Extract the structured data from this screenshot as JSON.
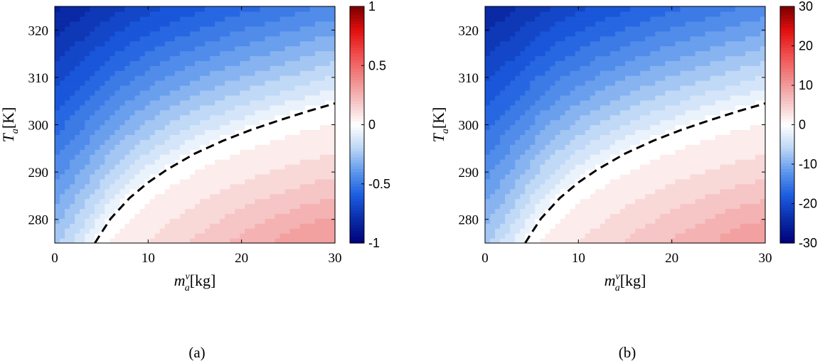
{
  "chart_data": [
    {
      "type": "heatmap",
      "caption": "(a)",
      "x": {
        "symbol": "m",
        "sup": "v",
        "sub": "a",
        "unit": "[kg]",
        "lim": [
          0,
          30
        ],
        "ticks": [
          0,
          10,
          20,
          30
        ],
        "tick_labels": [
          "0",
          "10",
          "20",
          "30"
        ]
      },
      "y": {
        "symbol": "T",
        "sub": "a",
        "unit": "[K]",
        "lim": [
          275,
          325
        ],
        "ticks": [
          280,
          290,
          300,
          310,
          320
        ],
        "tick_labels": [
          "280",
          "290",
          "300",
          "310",
          "320"
        ]
      },
      "colorbar": {
        "lim": [
          -1,
          1
        ],
        "ticks": [
          -1,
          -0.5,
          0,
          0.5,
          1
        ],
        "tick_labels": [
          "-1",
          "-0.5",
          "0",
          "0.5",
          "1"
        ]
      },
      "field_scale": 1,
      "min_value": -0.98,
      "max_value": 0.26,
      "zero_contour": {
        "style": "dashed",
        "color": "#000000",
        "x": [
          4.3,
          5,
          6,
          8,
          10,
          12,
          15,
          18,
          21,
          24,
          27,
          30
        ],
        "y": [
          275,
          277.2,
          280.2,
          284.5,
          287.8,
          290.5,
          293.9,
          296.6,
          298.9,
          300.9,
          302.8,
          304.5
        ]
      }
    },
    {
      "type": "heatmap",
      "caption": "(b)",
      "x": {
        "symbol": "m",
        "sup": "v",
        "sub": "a",
        "unit": "[kg]",
        "lim": [
          0,
          30
        ],
        "ticks": [
          0,
          10,
          20,
          30
        ],
        "tick_labels": [
          "0",
          "10",
          "20",
          "30"
        ]
      },
      "y": {
        "symbol": "T",
        "sub": "a",
        "unit": "[K]",
        "lim": [
          275,
          325
        ],
        "ticks": [
          280,
          290,
          300,
          310,
          320
        ],
        "tick_labels": [
          "280",
          "290",
          "300",
          "310",
          "320"
        ]
      },
      "colorbar": {
        "lim": [
          -30,
          30
        ],
        "ticks": [
          -30,
          -20,
          -10,
          0,
          10,
          20,
          30
        ],
        "tick_labels": [
          "-30",
          "-20",
          "-10",
          "0",
          "10",
          "20",
          "30"
        ]
      },
      "field_scale": 30,
      "min_value": -29,
      "max_value": 7.5,
      "zero_contour": {
        "style": "dashed",
        "color": "#000000",
        "x": [
          4.3,
          5,
          6,
          8,
          10,
          12,
          15,
          18,
          21,
          24,
          27,
          30
        ],
        "y": [
          275,
          277.2,
          280.2,
          284.5,
          287.8,
          290.5,
          293.9,
          296.6,
          298.9,
          300.9,
          302.8,
          304.5
        ]
      }
    }
  ],
  "colormap": [
    "#00007a",
    "#0a2ca8",
    "#1b5ce0",
    "#5d97ec",
    "#bcd6f5",
    "#ffffff",
    "#f5c1c1",
    "#f08686",
    "#f04b4b",
    "#e00e0e",
    "#7a0000"
  ]
}
